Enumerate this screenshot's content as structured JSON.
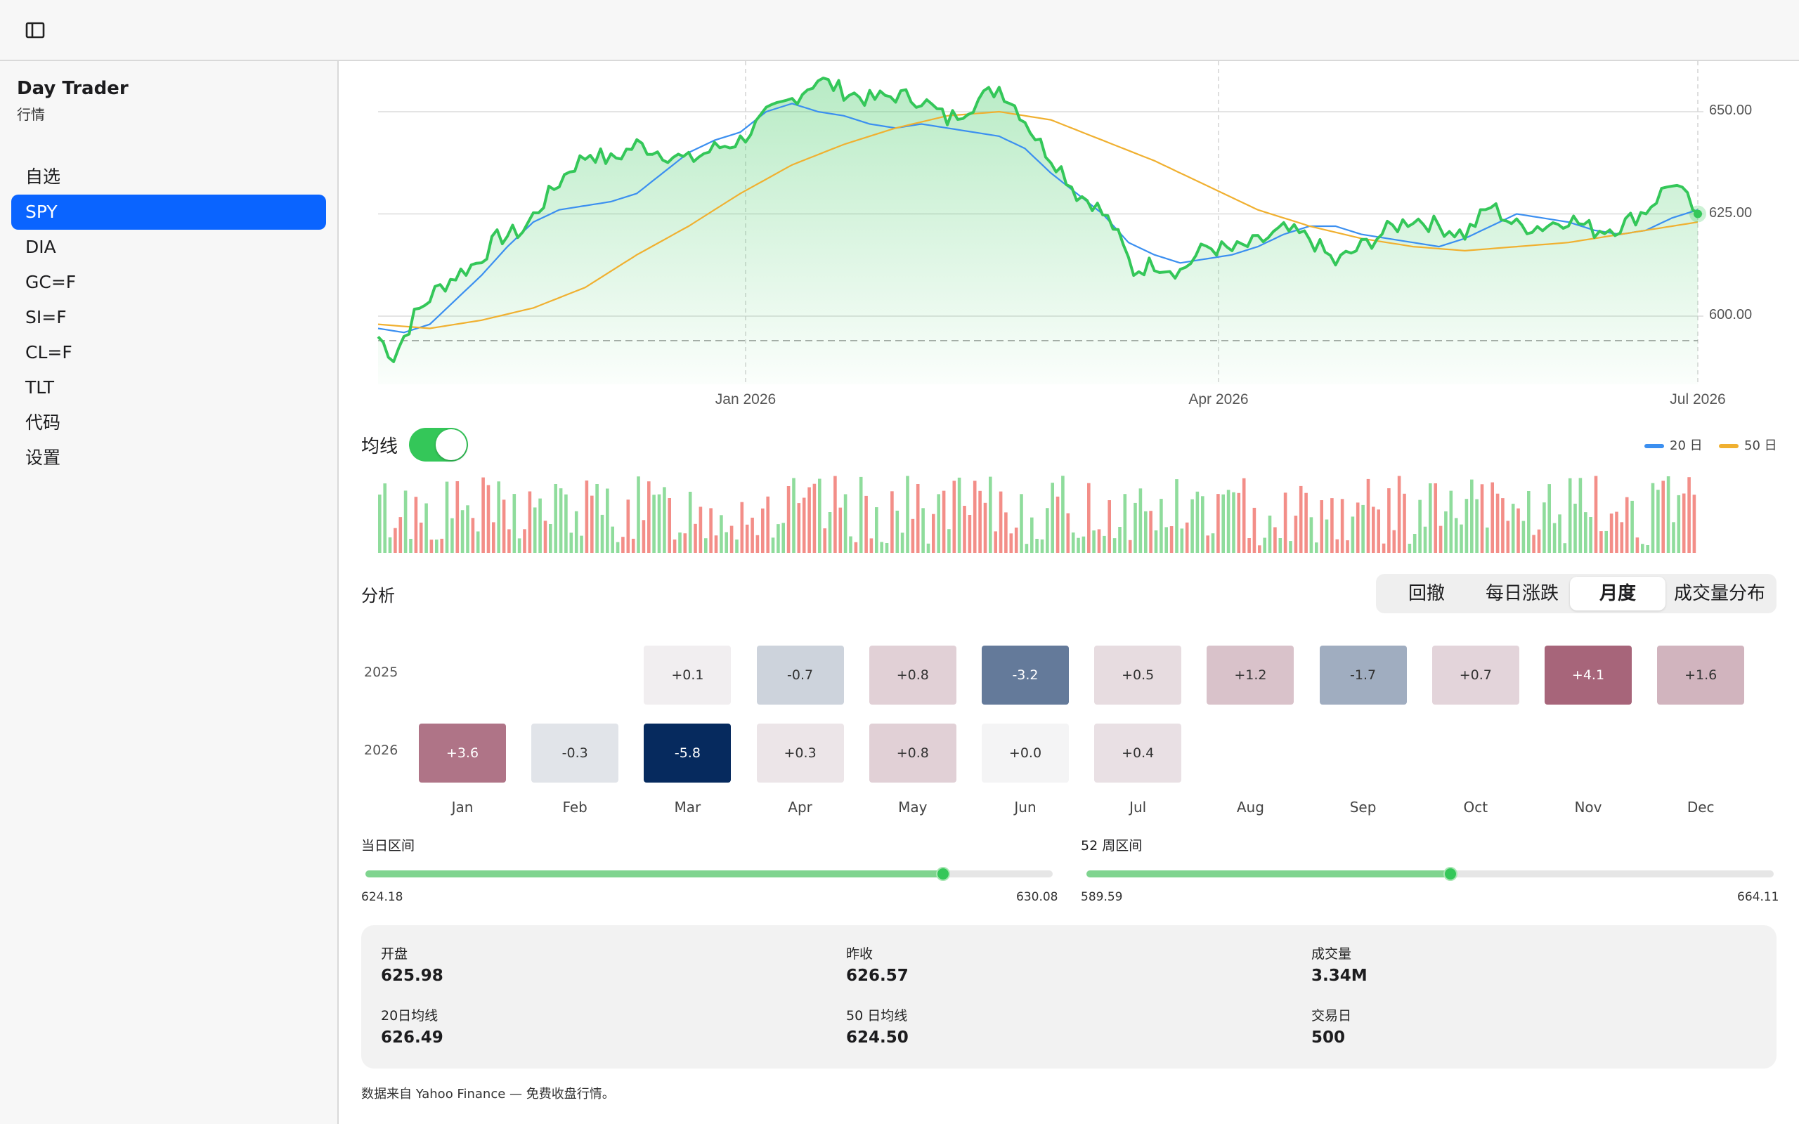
{
  "app": {
    "title": "Day Trader",
    "subtitle": "行情"
  },
  "sidebar": {
    "items": [
      {
        "label": "自选",
        "active": false
      },
      {
        "label": "SPY",
        "active": true
      },
      {
        "label": "DIA",
        "active": false
      },
      {
        "label": "GC=F",
        "active": false
      },
      {
        "label": "SI=F",
        "active": false
      },
      {
        "label": "CL=F",
        "active": false
      },
      {
        "label": "TLT",
        "active": false
      },
      {
        "label": "代码",
        "active": false
      },
      {
        "label": "设置",
        "active": false
      }
    ]
  },
  "chart": {
    "y_ticks": [
      "650.00",
      "625.00",
      "600.00"
    ],
    "x_ticks": [
      "Jan 2026",
      "Apr 2026",
      "Jul 2026"
    ],
    "ma_label": "均线",
    "ma_enabled": true,
    "legend": [
      {
        "label": "20 日",
        "color": "#3b8ff0"
      },
      {
        "label": "50 日",
        "color": "#f0b030"
      }
    ]
  },
  "chart_data": {
    "type": "line",
    "ylim": [
      583,
      658
    ],
    "yticks": [
      600,
      625,
      650
    ],
    "xticks": [
      "Jan 2026",
      "Apr 2026",
      "Jul 2026"
    ],
    "reference_line": 594,
    "series": [
      {
        "name": "price",
        "color": "#34c759",
        "points": [
          [
            0,
            595
          ],
          [
            6,
            590
          ],
          [
            14,
            600
          ],
          [
            22,
            606
          ],
          [
            30,
            610
          ],
          [
            38,
            613
          ],
          [
            46,
            619
          ],
          [
            56,
            621
          ],
          [
            64,
            628
          ],
          [
            74,
            636
          ],
          [
            82,
            640
          ],
          [
            90,
            638
          ],
          [
            100,
            642
          ],
          [
            110,
            640
          ],
          [
            120,
            638
          ],
          [
            130,
            641
          ],
          [
            140,
            643
          ],
          [
            150,
            649
          ],
          [
            160,
            653
          ],
          [
            170,
            658
          ],
          [
            180,
            655
          ],
          [
            190,
            653
          ],
          [
            200,
            654
          ],
          [
            210,
            653
          ],
          [
            220,
            648
          ],
          [
            230,
            652
          ],
          [
            240,
            656
          ],
          [
            248,
            650
          ],
          [
            256,
            642
          ],
          [
            264,
            636
          ],
          [
            270,
            630
          ],
          [
            276,
            628
          ],
          [
            284,
            622
          ],
          [
            292,
            611
          ],
          [
            300,
            613
          ],
          [
            310,
            611
          ],
          [
            320,
            617
          ],
          [
            330,
            616
          ],
          [
            340,
            618
          ],
          [
            350,
            621
          ],
          [
            360,
            619
          ],
          [
            370,
            613
          ],
          [
            380,
            617
          ],
          [
            390,
            621
          ],
          [
            400,
            624
          ],
          [
            410,
            622
          ],
          [
            420,
            620
          ],
          [
            430,
            627
          ],
          [
            440,
            622
          ],
          [
            450,
            622
          ],
          [
            460,
            624
          ],
          [
            470,
            621
          ],
          [
            480,
            622
          ],
          [
            490,
            626
          ],
          [
            500,
            633
          ],
          [
            510,
            625
          ]
        ]
      },
      {
        "name": "20 日",
        "color": "#3b8ff0",
        "points": [
          [
            0,
            597
          ],
          [
            10,
            596
          ],
          [
            20,
            598
          ],
          [
            30,
            604
          ],
          [
            40,
            610
          ],
          [
            50,
            617
          ],
          [
            60,
            623
          ],
          [
            70,
            626
          ],
          [
            80,
            627
          ],
          [
            90,
            628
          ],
          [
            100,
            630
          ],
          [
            110,
            635
          ],
          [
            120,
            640
          ],
          [
            130,
            643
          ],
          [
            140,
            645
          ],
          [
            150,
            650
          ],
          [
            160,
            652
          ],
          [
            170,
            650
          ],
          [
            180,
            649
          ],
          [
            190,
            647
          ],
          [
            200,
            646
          ],
          [
            210,
            647
          ],
          [
            220,
            646
          ],
          [
            230,
            645
          ],
          [
            240,
            644
          ],
          [
            250,
            641
          ],
          [
            260,
            635
          ],
          [
            270,
            630
          ],
          [
            280,
            625
          ],
          [
            290,
            618
          ],
          [
            300,
            615
          ],
          [
            310,
            613
          ],
          [
            320,
            614
          ],
          [
            330,
            615
          ],
          [
            340,
            617
          ],
          [
            350,
            620
          ],
          [
            360,
            622
          ],
          [
            370,
            622
          ],
          [
            380,
            620
          ],
          [
            390,
            619
          ],
          [
            400,
            618
          ],
          [
            410,
            617
          ],
          [
            420,
            619
          ],
          [
            430,
            622
          ],
          [
            440,
            625
          ],
          [
            450,
            624
          ],
          [
            460,
            623
          ],
          [
            470,
            621
          ],
          [
            480,
            620
          ],
          [
            490,
            621
          ],
          [
            500,
            624
          ],
          [
            510,
            626
          ]
        ]
      },
      {
        "name": "50 日",
        "color": "#f0b030",
        "points": [
          [
            0,
            598
          ],
          [
            20,
            597
          ],
          [
            40,
            599
          ],
          [
            60,
            602
          ],
          [
            80,
            607
          ],
          [
            100,
            615
          ],
          [
            120,
            622
          ],
          [
            140,
            630
          ],
          [
            160,
            637
          ],
          [
            180,
            642
          ],
          [
            200,
            646
          ],
          [
            220,
            649
          ],
          [
            240,
            650
          ],
          [
            260,
            648
          ],
          [
            280,
            643
          ],
          [
            300,
            638
          ],
          [
            320,
            632
          ],
          [
            340,
            626
          ],
          [
            360,
            622
          ],
          [
            380,
            619
          ],
          [
            400,
            617
          ],
          [
            420,
            616
          ],
          [
            440,
            617
          ],
          [
            460,
            618
          ],
          [
            480,
            620
          ],
          [
            500,
            622
          ],
          [
            510,
            623
          ]
        ]
      }
    ]
  },
  "volume_colors": {
    "up": "#8fdc9c",
    "down": "#f38e88"
  },
  "analysis": {
    "label": "分析",
    "tabs": [
      {
        "label": "回撤",
        "active": false
      },
      {
        "label": "每日涨跌",
        "active": false
      },
      {
        "label": "月度",
        "active": true
      },
      {
        "label": "成交量分布",
        "active": false
      }
    ],
    "months": [
      "Jan",
      "Feb",
      "Mar",
      "Apr",
      "May",
      "Jun",
      "Jul",
      "Aug",
      "Sep",
      "Oct",
      "Nov",
      "Dec"
    ],
    "years": [
      {
        "year": "2025",
        "values": [
          null,
          null,
          "+0.1",
          "-0.7",
          "+0.8",
          "-3.2",
          "+0.5",
          "+1.2",
          "-1.7",
          "+0.7",
          "+4.1",
          "+1.6"
        ]
      },
      {
        "year": "2026",
        "values": [
          "+3.6",
          "-0.3",
          "-5.8",
          "+0.3",
          "+0.8",
          "+0.0",
          "+0.4",
          null,
          null,
          null,
          null,
          null
        ]
      }
    ]
  },
  "ranges": {
    "day": {
      "label": "当日区间",
      "min": "624.18",
      "max": "630.08",
      "position": 0.84
    },
    "week52": {
      "label": "52 周区间",
      "min": "589.59",
      "max": "664.11",
      "position": 0.53
    }
  },
  "stats": {
    "open": {
      "label": "开盘",
      "value": "625.98"
    },
    "prev_close": {
      "label": "昨收",
      "value": "626.57"
    },
    "volume": {
      "label": "成交量",
      "value": "3.34M"
    },
    "ma20": {
      "label": "20日均线",
      "value": "626.49"
    },
    "ma50": {
      "label": "50 日均线",
      "value": "624.50"
    },
    "trading_days": {
      "label": "交易日",
      "value": "500"
    }
  },
  "footer": "数据来自 Yahoo Finance — 免费收盘行情。"
}
